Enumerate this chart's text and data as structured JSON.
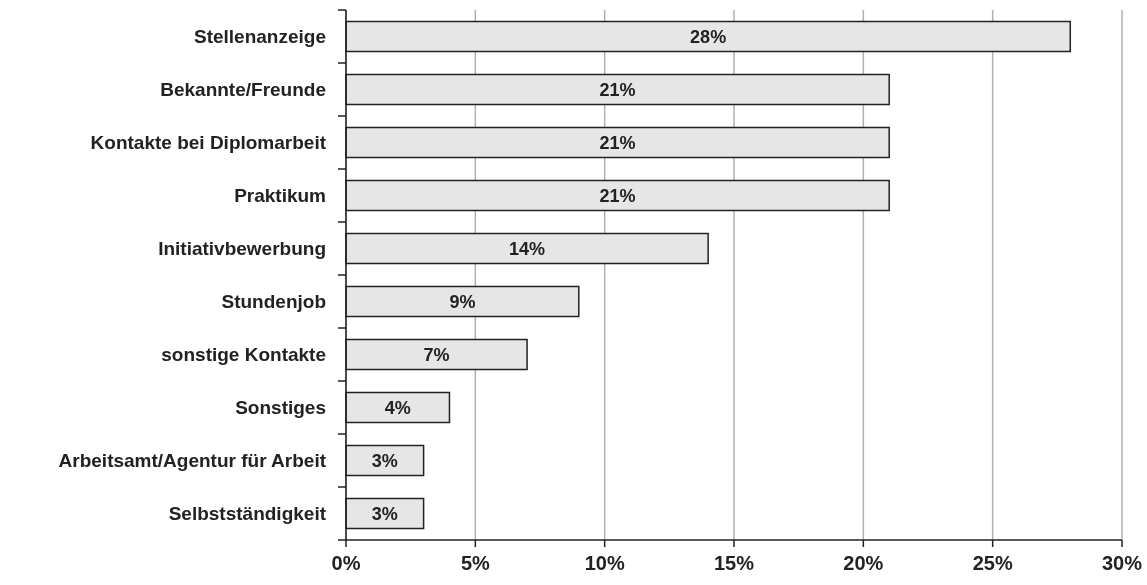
{
  "chart_data": {
    "type": "bar",
    "orientation": "horizontal",
    "categories": [
      "Stellenanzeige",
      "Bekannte/Freunde",
      "Kontakte bei Diplomarbeit",
      "Praktikum",
      "Initiativbewerbung",
      "Stundenjob",
      "sonstige Kontakte",
      "Sonstiges",
      "Arbeitsamt/Agentur für Arbeit",
      "Selbstständigkeit"
    ],
    "values": [
      28,
      21,
      21,
      21,
      14,
      9,
      7,
      4,
      3,
      3
    ],
    "value_labels": [
      "28%",
      "21%",
      "21%",
      "21%",
      "14%",
      "9%",
      "7%",
      "4%",
      "3%",
      "3%"
    ],
    "color": "#e6e6e6",
    "xlim": [
      0,
      30
    ],
    "xticks": [
      {
        "value": 0,
        "label": "0%"
      },
      {
        "value": 5,
        "label": "5%"
      },
      {
        "value": 10,
        "label": "10%"
      },
      {
        "value": 15,
        "label": "15%"
      },
      {
        "value": 20,
        "label": "20%"
      },
      {
        "value": 25,
        "label": "25%"
      },
      {
        "value": 30,
        "label": "30%"
      }
    ],
    "grid": "x"
  }
}
